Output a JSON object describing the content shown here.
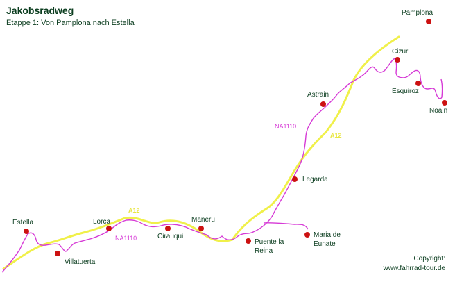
{
  "header": {
    "title": "Jakobsradweg",
    "subtitle": "Etappe 1: Von Pamplona nach Estella"
  },
  "places": [
    {
      "name": "Pamplona"
    },
    {
      "name": "Cizur"
    },
    {
      "name": "Esquiroz"
    },
    {
      "name": "Noain"
    },
    {
      "name": "Astrain"
    },
    {
      "name": "Legarda"
    },
    {
      "name": "Maria de Eunate"
    },
    {
      "name": "Puente la Reina"
    },
    {
      "name": "Maneru"
    },
    {
      "name": "Cirauqui"
    },
    {
      "name": "Lorca"
    },
    {
      "name": "Villatuerta"
    },
    {
      "name": "Estella"
    }
  ],
  "roads": {
    "na1110_upper": "NA1110",
    "a12_upper": "A12",
    "a12_lower": "A12",
    "na1110_lower": "NA1110"
  },
  "colors": {
    "route": "#d63ad6",
    "highway": "#f0f04a",
    "town": "#cc1111"
  },
  "footer": {
    "copyright_label": "Copyright:",
    "copyright_url": "www.fahrrad-tour.de"
  }
}
